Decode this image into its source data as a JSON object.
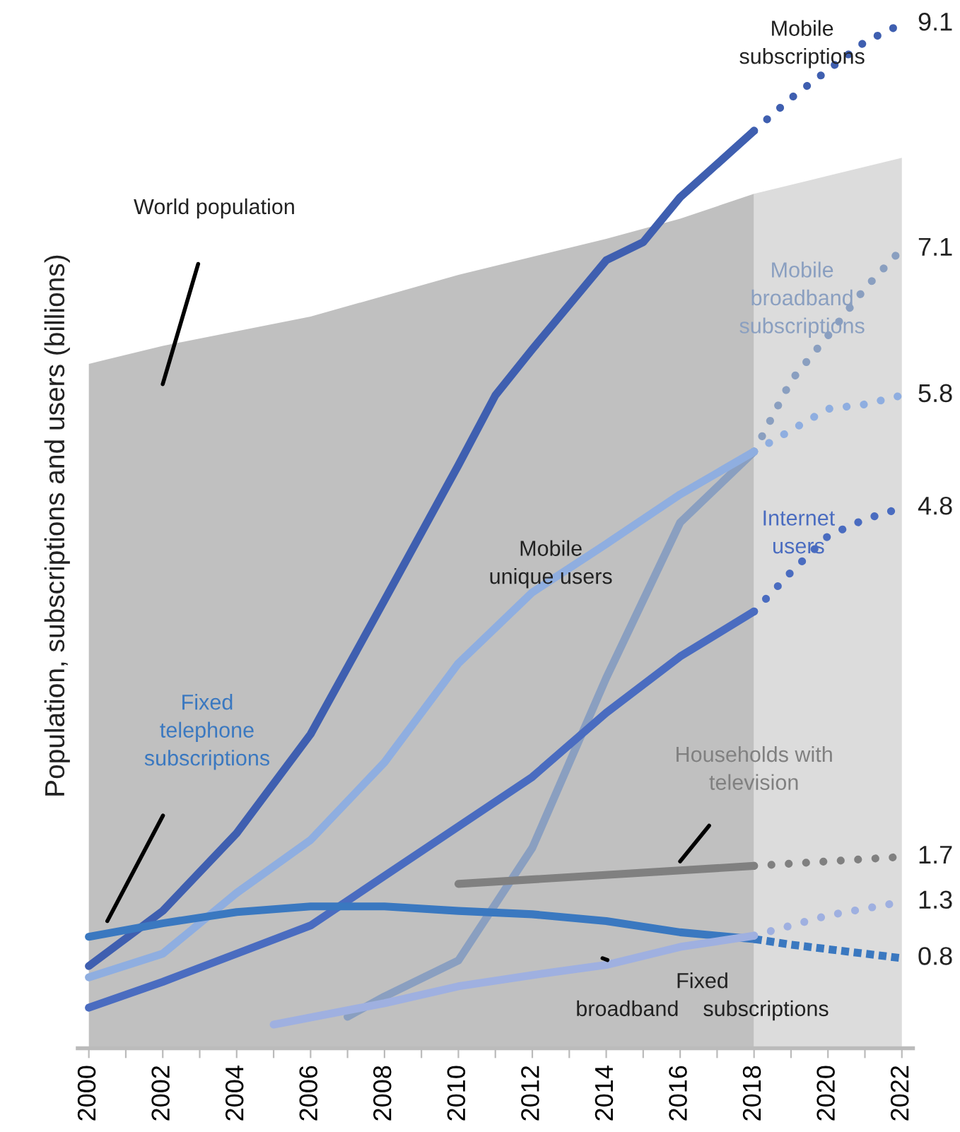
{
  "chart_data": {
    "type": "line",
    "ylabel": "Population, subscriptions and users (billions)",
    "xlim": [
      1999.7,
      2022.3
    ],
    "xticks": [
      2000,
      {
        "value": 2001,
        "label": null
      },
      2002,
      {
        "value": 2003,
        "label": null
      },
      2004,
      {
        "value": 2005,
        "label": null
      },
      2006,
      {
        "value": 2007,
        "label": null
      },
      2008,
      {
        "value": 2009,
        "label": null
      },
      2010,
      {
        "value": 2011,
        "label": null
      },
      2012,
      {
        "value": 2013,
        "label": null
      },
      2014,
      {
        "value": 2015,
        "label": null
      },
      2016,
      {
        "value": 2017,
        "label": null
      },
      2018,
      {
        "value": 2019,
        "label": null
      },
      2020,
      {
        "value": 2021,
        "label": null
      },
      2022
    ],
    "tick_labels": "x",
    "grid": false,
    "legend": false,
    "series": [
      {
        "type": "area",
        "name": "World population",
        "color": "#c0c0c0",
        "x": [
          2000,
          2002,
          2006,
          2010,
          2014,
          2016,
          2018
        ],
        "values": [
          6.08,
          6.24,
          6.5,
          6.87,
          7.19,
          7.37,
          7.59
        ]
      },
      {
        "type": "area",
        "color": "#dcdcdc",
        "x": [
          2018,
          2020,
          2022
        ],
        "values": [
          7.59,
          7.75,
          7.91
        ]
      },
      {
        "name": "Mobile\nsubscriptions",
        "color": "#3f5fb0",
        "line_style": "solid",
        "x": [
          2000,
          2002,
          2004,
          2006,
          2008,
          2010,
          2011,
          2012,
          2014,
          2015,
          2016,
          2018
        ],
        "values": [
          0.73,
          1.22,
          1.91,
          2.79,
          3.98,
          5.18,
          5.8,
          6.21,
          7.0,
          7.16,
          7.56,
          8.15
        ]
      },
      {
        "color": "#3f5fb0",
        "line_style": "dotted",
        "x": [
          2018,
          2019,
          2020,
          2021,
          2022
        ],
        "values": [
          8.15,
          8.44,
          8.69,
          8.94,
          9.1
        ],
        "value_labels": [
          null,
          null,
          null,
          null,
          "9.1"
        ]
      },
      {
        "name": "Mobile\nbroadband\nsubscriptions",
        "color": "#8a9fc0",
        "line_style": "solid",
        "x": [
          2007,
          2008,
          2010,
          2012,
          2014,
          2016,
          2018
        ],
        "values": [
          0.28,
          0.46,
          0.78,
          1.78,
          3.29,
          4.67,
          5.3
        ]
      },
      {
        "color": "#8a9fc0",
        "line_style": "dotted",
        "x": [
          2018,
          2019,
          2020,
          2021,
          2022
        ],
        "values": [
          5.3,
          5.93,
          6.33,
          6.75,
          7.1
        ],
        "value_labels": [
          null,
          null,
          null,
          null,
          "7.1"
        ]
      },
      {
        "name": "Mobile\nunique users",
        "color": "#8faee0",
        "line_style": "solid",
        "x": [
          2000,
          2002,
          2004,
          2006,
          2008,
          2010,
          2012,
          2014,
          2016,
          2018
        ],
        "values": [
          0.63,
          0.84,
          1.38,
          1.85,
          2.54,
          3.42,
          4.05,
          4.48,
          4.92,
          5.3
        ]
      },
      {
        "color": "#8faee0",
        "line_style": "dotted",
        "x": [
          2018,
          2019,
          2020,
          2021,
          2022
        ],
        "values": [
          5.3,
          5.49,
          5.68,
          5.72,
          5.8
        ],
        "value_labels": [
          null,
          null,
          null,
          null,
          "5.8"
        ]
      },
      {
        "name": "Internet\nusers",
        "color": "#4a6cc0",
        "line_style": "solid",
        "x": [
          2000,
          2002,
          2004,
          2006,
          2008,
          2010,
          2012,
          2014,
          2016,
          2018
        ],
        "values": [
          0.36,
          0.59,
          0.84,
          1.09,
          1.53,
          1.97,
          2.41,
          2.98,
          3.48,
          3.88
        ]
      },
      {
        "color": "#4a6cc0",
        "line_style": "dotted",
        "x": [
          2018,
          2019,
          2020,
          2021,
          2022
        ],
        "values": [
          3.88,
          4.23,
          4.55,
          4.7,
          4.8
        ],
        "value_labels": [
          null,
          null,
          null,
          null,
          "4.8"
        ]
      },
      {
        "name": "Fixed\ntelephone\nsubscriptions",
        "color": "#3a78c0",
        "line_style": "solid",
        "x": [
          2000,
          2002,
          2004,
          2006,
          2008,
          2010,
          2012,
          2014,
          2016,
          2018
        ],
        "values": [
          0.99,
          1.11,
          1.21,
          1.26,
          1.26,
          1.22,
          1.19,
          1.13,
          1.03,
          0.97
        ]
      },
      {
        "color": "#3a78c0",
        "line_style": "dashed",
        "x": [
          2018,
          2019,
          2020,
          2021,
          2022
        ],
        "values": [
          0.97,
          0.92,
          0.88,
          0.84,
          0.8
        ],
        "value_labels": [
          null,
          null,
          null,
          null,
          "0.8"
        ]
      },
      {
        "name": "Fixed\nbroadband    subscriptions",
        "color": "#9fb0e0",
        "line_style": "solid",
        "x": [
          2005,
          2008,
          2010,
          2012,
          2014,
          2016,
          2018
        ],
        "values": [
          0.21,
          0.4,
          0.55,
          0.65,
          0.74,
          0.9,
          1.0
        ]
      },
      {
        "color": "#9fb0e0",
        "line_style": "dotted",
        "x": [
          2018,
          2019,
          2020,
          2021,
          2022
        ],
        "values": [
          1.0,
          1.09,
          1.18,
          1.24,
          1.3
        ],
        "value_labels": [
          null,
          null,
          null,
          null,
          "1.3"
        ]
      },
      {
        "name": "Households with\ntelevision",
        "color": "#808080",
        "line_style": "solid",
        "x": [
          2010,
          2018
        ],
        "values": [
          1.46,
          1.62
        ]
      },
      {
        "color": "#808080",
        "line_style": "dotted",
        "x": [
          2018,
          2019,
          2020,
          2021,
          2022
        ],
        "values": [
          1.62,
          1.64,
          1.66,
          1.68,
          1.7
        ],
        "value_labels": [
          null,
          null,
          null,
          null,
          "1.7"
        ]
      }
    ]
  }
}
